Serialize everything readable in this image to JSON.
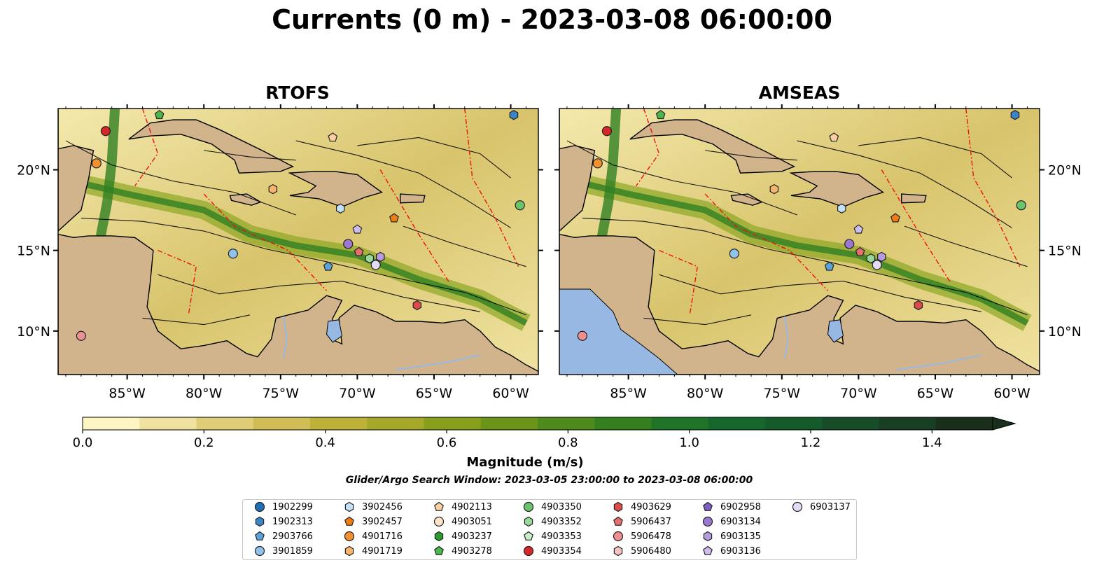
{
  "title": "Currents (0 m) - 2023-03-08 06:00:00",
  "panels": [
    {
      "name": "RTOFS"
    },
    {
      "name": "AMSEAS"
    }
  ],
  "axes": {
    "lon_ticks": [
      "85°W",
      "80°W",
      "75°W",
      "70°W",
      "65°W",
      "60°W"
    ],
    "lat_ticks": [
      "20°N",
      "15°N",
      "10°N"
    ],
    "lon_range": [
      -89.5,
      -58.2
    ],
    "lat_range": [
      7.3,
      23.8
    ]
  },
  "colorbar": {
    "label": "Magnitude (m/s)",
    "range": [
      0.0,
      1.5
    ],
    "extend": "max",
    "ticks": [
      "0.0",
      "0.2",
      "0.4",
      "0.6",
      "0.8",
      "1.0",
      "1.2",
      "1.4"
    ],
    "tick_values": [
      0.0,
      0.2,
      0.4,
      0.6,
      0.8,
      1.0,
      1.2,
      1.4
    ],
    "colors": [
      "#fdf6c3",
      "#efe2a0",
      "#dfcd78",
      "#d1bd55",
      "#beb13a",
      "#a6a829",
      "#879f1c",
      "#6b9519",
      "#4e8a1c",
      "#34801f",
      "#1f7428",
      "#15672b",
      "#145a2a",
      "#164c28",
      "#183f23",
      "#192e1b"
    ]
  },
  "search_window": "Glider/Argo Search Window: 2023-03-05 23:00:00 to 2023-03-08 06:00:00",
  "legend": [
    {
      "id": "1902299",
      "marker": "circle",
      "color": "#1f6fb5"
    },
    {
      "id": "1902313",
      "marker": "hexagon",
      "color": "#3a86c8"
    },
    {
      "id": "2903766",
      "marker": "pentagon",
      "color": "#5ca3db"
    },
    {
      "id": "3901859",
      "marker": "circle",
      "color": "#8fc3ec"
    },
    {
      "id": "3902456",
      "marker": "hexagon",
      "color": "#c3e2f7"
    },
    {
      "id": "3902457",
      "marker": "pentagon",
      "color": "#f07d14"
    },
    {
      "id": "4901716",
      "marker": "circle",
      "color": "#f5902f"
    },
    {
      "id": "4901719",
      "marker": "hexagon",
      "color": "#f8b46b"
    },
    {
      "id": "4902113",
      "marker": "pentagon",
      "color": "#fbcf9f"
    },
    {
      "id": "4903051",
      "marker": "circle",
      "color": "#fde3c8"
    },
    {
      "id": "4903237",
      "marker": "hexagon",
      "color": "#2c9a2c"
    },
    {
      "id": "4903278",
      "marker": "pentagon",
      "color": "#4cb64c"
    },
    {
      "id": "4903350",
      "marker": "circle",
      "color": "#6cc56c"
    },
    {
      "id": "4903352",
      "marker": "hexagon",
      "color": "#9ad89a"
    },
    {
      "id": "4903353",
      "marker": "pentagon",
      "color": "#c8eec8"
    },
    {
      "id": "4903354",
      "marker": "circle",
      "color": "#d62728"
    },
    {
      "id": "4903629",
      "marker": "hexagon",
      "color": "#dd4a4a"
    },
    {
      "id": "5906437",
      "marker": "pentagon",
      "color": "#e56f6f"
    },
    {
      "id": "5906478",
      "marker": "circle",
      "color": "#ec9090"
    },
    {
      "id": "5906480",
      "marker": "hexagon",
      "color": "#f6c2c2"
    },
    {
      "id": "6902958",
      "marker": "pentagon",
      "color": "#7f5cc4"
    },
    {
      "id": "6903134",
      "marker": "circle",
      "color": "#9a78d2"
    },
    {
      "id": "6903135",
      "marker": "hexagon",
      "color": "#b59be0"
    },
    {
      "id": "6903136",
      "marker": "pentagon",
      "color": "#cdbdee"
    },
    {
      "id": "6903137",
      "marker": "circle",
      "color": "#e4dbf8"
    }
  ],
  "platform_positions": [
    {
      "id": "1902313",
      "lon": -59.8,
      "lat": 23.4
    },
    {
      "id": "4903278",
      "lon": -82.9,
      "lat": 23.4
    },
    {
      "id": "4903354",
      "lon": -86.4,
      "lat": 22.4
    },
    {
      "id": "4901716",
      "lon": -87.0,
      "lat": 20.4
    },
    {
      "id": "4902113",
      "lon": -71.6,
      "lat": 22.0
    },
    {
      "id": "4901719",
      "lon": -75.5,
      "lat": 18.8
    },
    {
      "id": "3902456",
      "lon": -71.1,
      "lat": 17.6
    },
    {
      "id": "3902457",
      "lon": -67.6,
      "lat": 17.0
    },
    {
      "id": "4903350",
      "lon": -59.4,
      "lat": 17.8
    },
    {
      "id": "3901859",
      "lon": -78.1,
      "lat": 14.8
    },
    {
      "id": "6903136",
      "lon": -70.0,
      "lat": 16.3
    },
    {
      "id": "6903134",
      "lon": -70.6,
      "lat": 15.4
    },
    {
      "id": "5906437",
      "lon": -69.9,
      "lat": 14.9
    },
    {
      "id": "4903352",
      "lon": -69.2,
      "lat": 14.5
    },
    {
      "id": "6903135",
      "lon": -68.5,
      "lat": 14.6
    },
    {
      "id": "6903137",
      "lon": -68.8,
      "lat": 14.1
    },
    {
      "id": "2903766",
      "lon": -71.9,
      "lat": 14.0
    },
    {
      "id": "4903629",
      "lon": -66.1,
      "lat": 11.6
    },
    {
      "id": "5906478",
      "lon": -88.0,
      "lat": 9.7
    }
  ]
}
